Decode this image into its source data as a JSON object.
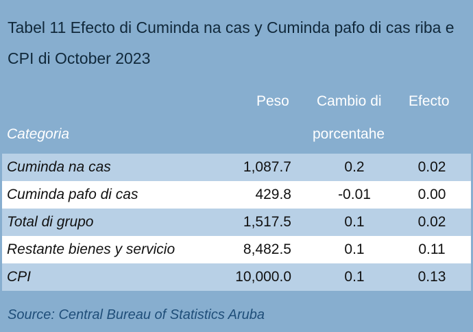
{
  "title": "Tabel 11 Efecto di Cuminda na cas y Cuminda pafo di cas riba e CPI di October 2023",
  "headers": {
    "category": "Categoria",
    "peso": "Peso",
    "cambio_line1": "Cambio di",
    "cambio_line2": "porcentahe",
    "efecto": "Efecto"
  },
  "rows": [
    {
      "category": "Cuminda na cas",
      "peso": "1,087.7",
      "cambio": "0.2",
      "efecto": "0.02"
    },
    {
      "category": "Cuminda pafo di cas",
      "peso": "429.8",
      "cambio": "-0.01",
      "efecto": "0.00"
    },
    {
      "category": "Total di grupo",
      "peso": "1,517.5",
      "cambio": "0.1",
      "efecto": "0.02"
    },
    {
      "category": "Restante bienes y servicio",
      "peso": "8,482.5",
      "cambio": "0.1",
      "efecto": "0.11"
    },
    {
      "category": "CPI",
      "peso": "10,000.0",
      "cambio": "0.1",
      "efecto": "0.13"
    }
  ],
  "source": "Source: Central Bureau of Statistics Aruba",
  "colors": {
    "background": "#87aecf",
    "row_shade": "#b8d0e6",
    "row_white": "#ffffff",
    "source_text": "#1f4e79"
  }
}
